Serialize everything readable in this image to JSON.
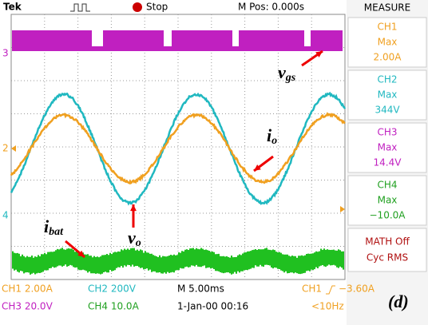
{
  "header": {
    "brand": "Tek",
    "status": "Stop",
    "position": "M Pos: 0.000s"
  },
  "measure": {
    "title": "MEASURE",
    "items": [
      {
        "channel": "CH1",
        "label": "Max",
        "value": "2.00A"
      },
      {
        "channel": "CH2",
        "label": "Max",
        "value": "344V"
      },
      {
        "channel": "CH3",
        "label": "Max",
        "value": "14.4V"
      },
      {
        "channel": "CH4",
        "label": "Max",
        "value": "−10.0A"
      }
    ],
    "math": {
      "line1": "MATH Off",
      "line2": "Cyc RMS"
    }
  },
  "markers": [
    "3",
    "2",
    "4"
  ],
  "annotations": {
    "vgs": {
      "symbol": "v",
      "subscript": "gs"
    },
    "io": {
      "symbol": "i",
      "subscript": "o"
    },
    "vo": {
      "symbol": "v",
      "subscript": "o"
    },
    "ibat": {
      "symbol": "i",
      "subscript": "bat"
    }
  },
  "footer": {
    "ch1": "CH1 2.00A",
    "ch2": "CH2 200V",
    "time": "M 5.00ms",
    "trigger_source": "CH1",
    "trigger_level": "−3.60A",
    "ch3": "CH3 20.0V",
    "ch4": "CH4 10.0A",
    "date": "1-Jan-00 00:16",
    "freq": "<10Hz",
    "panel": "(d)"
  }
}
